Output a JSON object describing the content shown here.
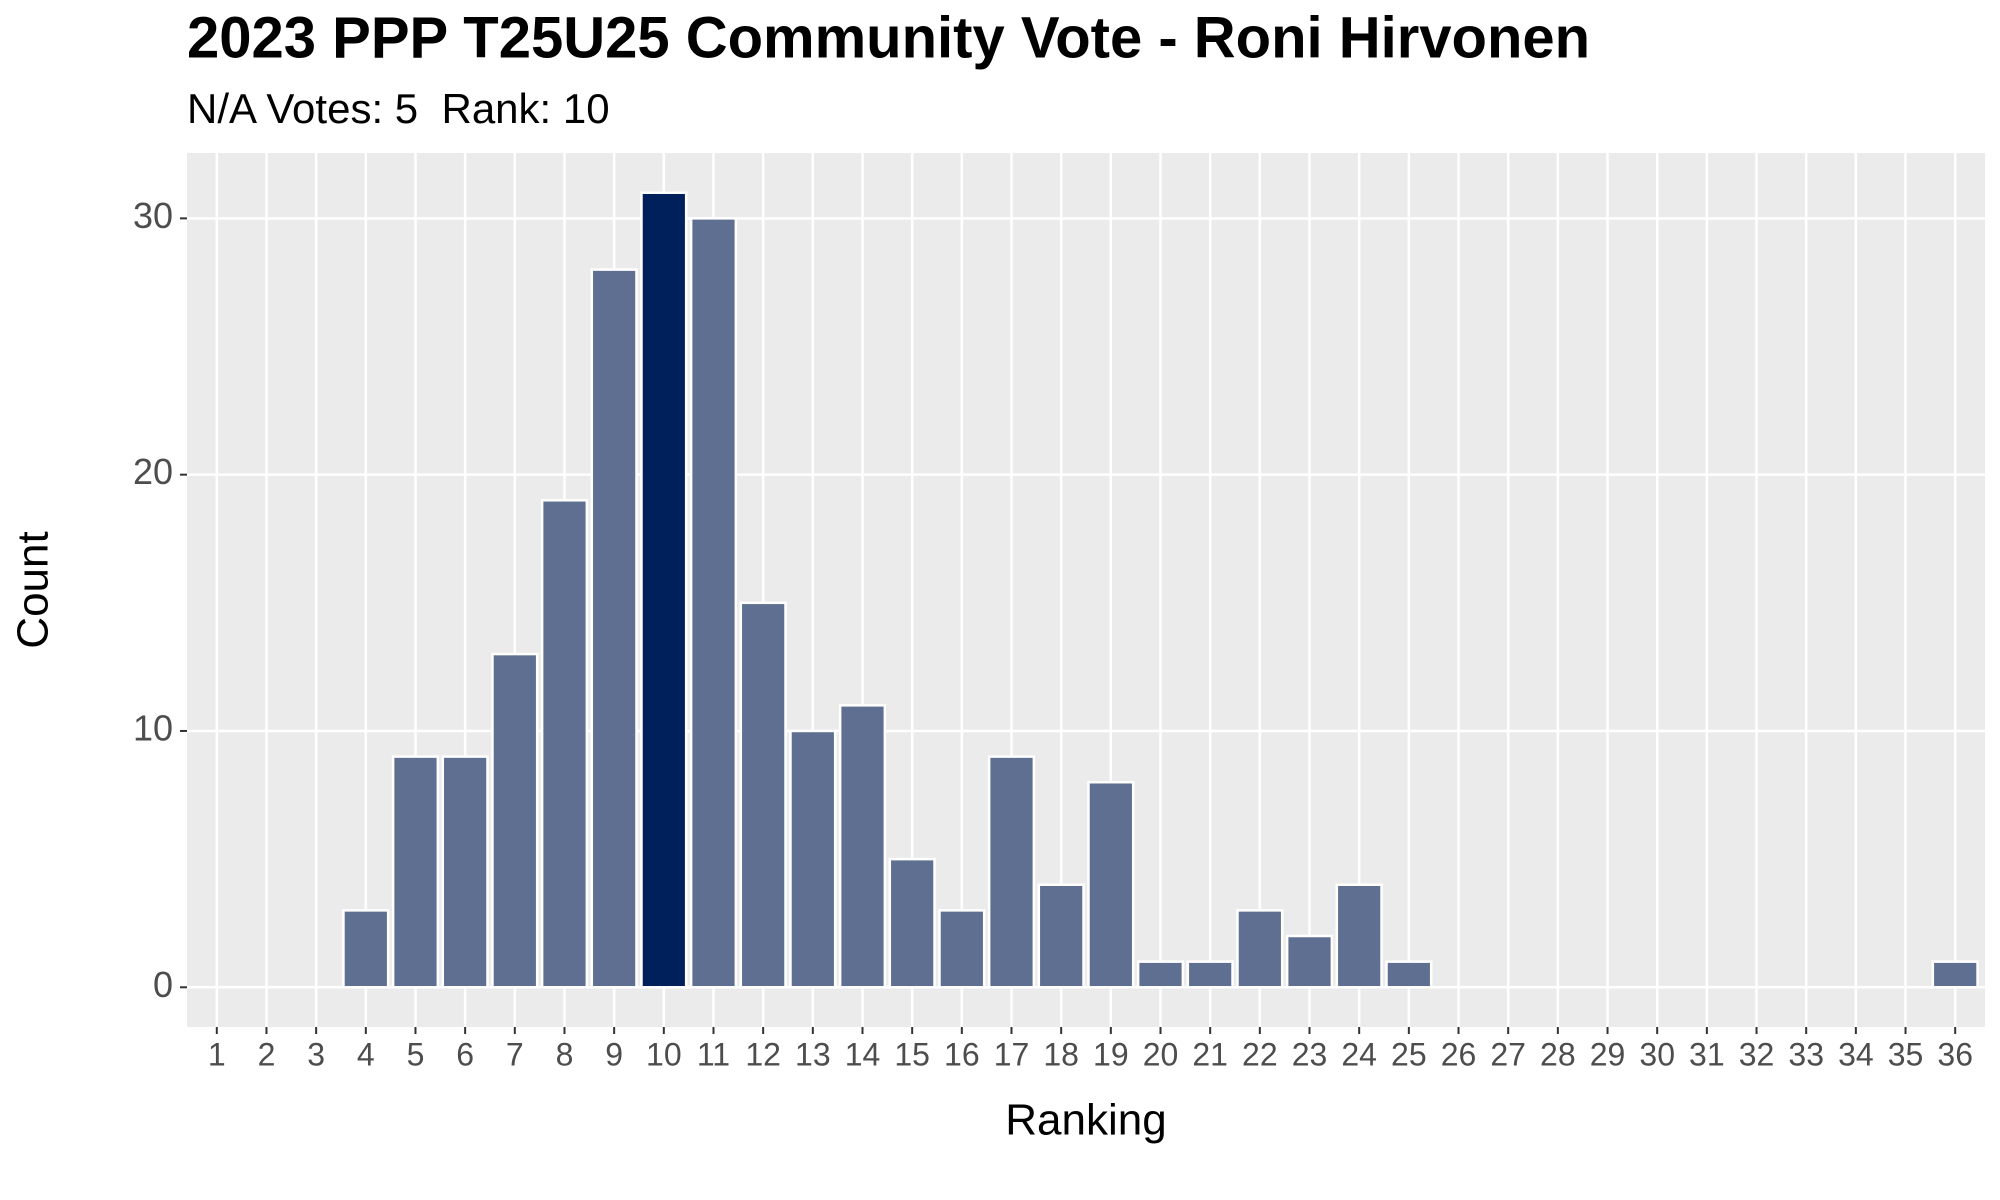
{
  "chart_data": {
    "type": "bar",
    "title": "2023 PPP T25U25 Community Vote - Roni Hirvonen",
    "subtitle": "N/A Votes: 5  Rank: 10",
    "x_label": "Ranking",
    "y_label": "Count",
    "categories": [
      "1",
      "2",
      "3",
      "4",
      "5",
      "6",
      "7",
      "8",
      "9",
      "10",
      "11",
      "12",
      "13",
      "14",
      "15",
      "16",
      "17",
      "18",
      "19",
      "20",
      "21",
      "22",
      "23",
      "24",
      "25",
      "26",
      "27",
      "28",
      "29",
      "30",
      "31",
      "32",
      "33",
      "34",
      "35",
      "36"
    ],
    "values": [
      0,
      0,
      0,
      3,
      9,
      9,
      13,
      19,
      28,
      31,
      30,
      15,
      10,
      11,
      5,
      3,
      9,
      4,
      8,
      1,
      1,
      3,
      2,
      4,
      1,
      0,
      0,
      0,
      0,
      0,
      0,
      0,
      0,
      0,
      0,
      1
    ],
    "colors": [
      "#5e6f91",
      "#5e6f91",
      "#5e6f91",
      "#5e6f91",
      "#5e6f91",
      "#5e6f91",
      "#5e6f91",
      "#5e6f91",
      "#5e6f91",
      "#00205b",
      "#5e6f91",
      "#5e6f91",
      "#5e6f91",
      "#5e6f91",
      "#5e6f91",
      "#5e6f91",
      "#5e6f91",
      "#5e6f91",
      "#5e6f91",
      "#5e6f91",
      "#5e6f91",
      "#5e6f91",
      "#5e6f91",
      "#5e6f91",
      "#5e6f91",
      "#5e6f91",
      "#5e6f91",
      "#5e6f91",
      "#5e6f91",
      "#5e6f91",
      "#5e6f91",
      "#5e6f91",
      "#5e6f91",
      "#5e6f91",
      "#5e6f91",
      "#5e6f91"
    ],
    "ylim": [
      -1.55,
      32.55
    ],
    "yticks": [
      0,
      10,
      20,
      30
    ],
    "grid": true
  }
}
